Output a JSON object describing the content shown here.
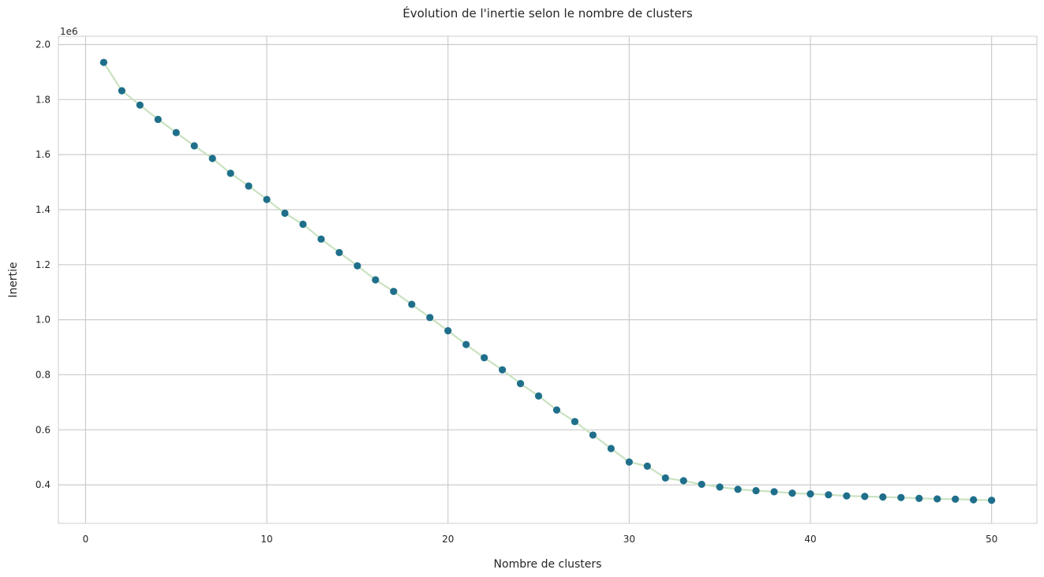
{
  "chart_data": {
    "type": "line",
    "title": "Évolution de l'inertie selon le nombre de clusters",
    "xlabel": "Nombre de clusters",
    "ylabel": "Inertie",
    "y_offset_label": "1e6",
    "xlim": [
      -1.5,
      52.5
    ],
    "ylim": [
      0.26,
      2.03
    ],
    "xticks": [
      0,
      10,
      20,
      30,
      40,
      50
    ],
    "xtick_labels": [
      "0",
      "10",
      "20",
      "30",
      "40",
      "50"
    ],
    "yticks": [
      0.4,
      0.6,
      0.8,
      1.0,
      1.2,
      1.4,
      1.6,
      1.8,
      2.0
    ],
    "ytick_labels": [
      "0.4",
      "0.6",
      "0.8",
      "1.0",
      "1.2",
      "1.4",
      "1.6",
      "1.8",
      "2.0"
    ],
    "grid": true,
    "line_color": "#c9e2c0",
    "marker_color": "#1f6f8b",
    "series": [
      {
        "x": [
          1,
          2,
          3,
          4,
          5,
          6,
          7,
          8,
          9,
          10,
          11,
          12,
          13,
          14,
          15,
          16,
          17,
          18,
          19,
          20,
          21,
          22,
          23,
          24,
          25,
          26,
          27,
          28,
          29,
          30,
          31,
          32,
          33,
          34,
          35,
          36,
          37,
          38,
          39,
          40,
          41,
          42,
          43,
          44,
          45,
          46,
          47,
          48,
          49,
          50
        ],
        "values": [
          1.935,
          1.832,
          1.78,
          1.728,
          1.68,
          1.632,
          1.586,
          1.532,
          1.486,
          1.437,
          1.387,
          1.347,
          1.293,
          1.244,
          1.196,
          1.145,
          1.103,
          1.056,
          1.008,
          0.96,
          0.91,
          0.862,
          0.818,
          0.768,
          0.723,
          0.672,
          0.63,
          0.581,
          0.532,
          0.483,
          0.468,
          0.425,
          0.415,
          0.402,
          0.392,
          0.384,
          0.379,
          0.375,
          0.37,
          0.367,
          0.364,
          0.36,
          0.358,
          0.356,
          0.354,
          0.351,
          0.349,
          0.348,
          0.346,
          0.344
        ]
      }
    ]
  }
}
